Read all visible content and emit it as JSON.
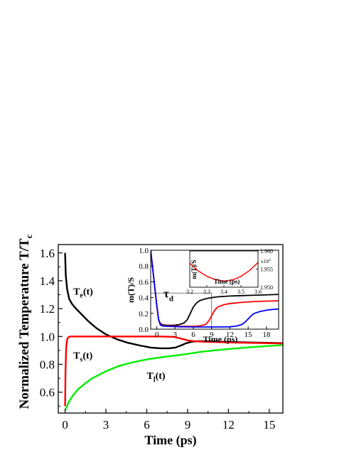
{
  "chart_data": [
    {
      "type": "line",
      "xlabel": "Time (ps)",
      "ylabel": "Normalized Temperature T/T",
      "ylabel_sub": "c",
      "xlim": [
        -0.5,
        16
      ],
      "ylim": [
        0.45,
        1.66
      ],
      "xticks": [
        0,
        3,
        6,
        9,
        12,
        15
      ],
      "yticks": [
        0.6,
        0.8,
        1.0,
        1.2,
        1.4,
        1.6
      ],
      "series": [
        {
          "name": "T",
          "name_sub": "e",
          "name_suffix": "(t)",
          "color": "#000000",
          "x": [
            0,
            0.05,
            0.15,
            0.3,
            0.5,
            0.8,
            1.2,
            1.7,
            2.3,
            3,
            3.8,
            4.6,
            5.5,
            6.3,
            7,
            7.6,
            8.1,
            8.5,
            8.9,
            9.3,
            9.8,
            10.5,
            12,
            14,
            16
          ],
          "y": [
            1.6,
            1.44,
            1.34,
            1.27,
            1.235,
            1.2,
            1.16,
            1.11,
            1.06,
            1.015,
            0.98,
            0.955,
            0.935,
            0.92,
            0.915,
            0.915,
            0.92,
            0.935,
            0.952,
            0.962,
            0.966,
            0.966,
            0.961,
            0.956,
            0.952
          ]
        },
        {
          "name": "T",
          "name_sub": "s",
          "name_suffix": "(t)",
          "color": "#ff0000",
          "x": [
            0,
            0.03,
            0.08,
            0.15,
            0.25,
            0.4,
            1,
            3,
            5,
            7,
            8,
            8.5,
            9,
            9.5,
            10,
            11,
            13,
            16
          ],
          "y": [
            0.5,
            0.75,
            0.92,
            0.98,
            0.995,
            1.0,
            1.0,
            1.0,
            1.0,
            1.0,
            0.997,
            0.985,
            0.972,
            0.966,
            0.963,
            0.96,
            0.955,
            0.95
          ]
        },
        {
          "name": "T",
          "name_sub": "l",
          "name_suffix": "(t)",
          "color": "#00ee00",
          "x": [
            0,
            0.1,
            0.3,
            0.6,
            1,
            1.5,
            2,
            3,
            4,
            5,
            6,
            7,
            8,
            9,
            10,
            11,
            12,
            13,
            14,
            15,
            16
          ],
          "y": [
            0.47,
            0.49,
            0.535,
            0.58,
            0.625,
            0.665,
            0.7,
            0.75,
            0.79,
            0.815,
            0.835,
            0.85,
            0.862,
            0.875,
            0.89,
            0.9,
            0.91,
            0.918,
            0.925,
            0.932,
            0.938
          ]
        }
      ],
      "label_positions": [
        {
          "x": 0.6,
          "y": 1.3
        },
        {
          "x": 0.6,
          "y": 0.84
        },
        {
          "x": 6.0,
          "y": 0.695
        }
      ]
    },
    {
      "type": "line",
      "ylabel": "m(T)/S",
      "xlabel": "Time (ps)",
      "xlim": [
        -1,
        20
      ],
      "ylim": [
        0,
        1.0
      ],
      "xticks": [
        0,
        3,
        6,
        9,
        12,
        15,
        18
      ],
      "yticks": [
        0.0,
        0.2,
        0.4,
        0.6,
        0.8,
        1.0
      ],
      "ytick_labels": [
        "0.0",
        "0.2",
        "0.4",
        "0.6",
        "0.8",
        "1.0"
      ],
      "annotation": {
        "text": "τ",
        "sub": "d",
        "x": 9,
        "y": 0.43
      },
      "series": [
        {
          "color": "#000000",
          "x": [
            -1,
            -0.5,
            0,
            0.3,
            0.6,
            1,
            1.5,
            2.2,
            3,
            3.8,
            4.5,
            5,
            5.5,
            6,
            6.5,
            7,
            8,
            9,
            10,
            12,
            14,
            16,
            18,
            20
          ],
          "y": [
            1.0,
            0.65,
            0.3,
            0.12,
            0.07,
            0.055,
            0.05,
            0.048,
            0.05,
            0.06,
            0.08,
            0.12,
            0.2,
            0.28,
            0.33,
            0.36,
            0.385,
            0.4,
            0.41,
            0.42,
            0.425,
            0.43,
            0.435,
            0.44
          ]
        },
        {
          "color": "#ff0000",
          "x": [
            -1,
            -0.5,
            0,
            0.3,
            0.6,
            1,
            2,
            3,
            4,
            5,
            6,
            7,
            8,
            8.5,
            9,
            9.5,
            10,
            11,
            12,
            14,
            16,
            18,
            20
          ],
          "y": [
            1.0,
            0.65,
            0.3,
            0.12,
            0.06,
            0.045,
            0.04,
            0.038,
            0.036,
            0.036,
            0.036,
            0.04,
            0.06,
            0.1,
            0.17,
            0.24,
            0.28,
            0.31,
            0.325,
            0.34,
            0.35,
            0.355,
            0.36
          ]
        },
        {
          "color": "#0000ff",
          "x": [
            -1,
            -0.5,
            0,
            0.3,
            0.6,
            1,
            2,
            4,
            6,
            8,
            10,
            12,
            13,
            14,
            14.5,
            15,
            15.5,
            16,
            17,
            18,
            19,
            20
          ],
          "y": [
            1.0,
            0.65,
            0.3,
            0.12,
            0.05,
            0.04,
            0.035,
            0.03,
            0.028,
            0.028,
            0.028,
            0.03,
            0.038,
            0.06,
            0.09,
            0.13,
            0.17,
            0.2,
            0.225,
            0.24,
            0.25,
            0.255
          ]
        }
      ]
    },
    {
      "type": "line",
      "ylabel": "m(T)/S",
      "xlabel": "Time (ps)",
      "xlim": [
        3.2,
        3.6
      ],
      "ylim": [
        1.95,
        1.96
      ],
      "xticks": [
        3.2,
        3.3,
        3.4,
        3.5,
        3.6
      ],
      "xtick_labels": [
        "3.2",
        "3.3",
        "3.4",
        "3.5",
        "3.6"
      ],
      "yticks": [
        1.95,
        1.955,
        1.96
      ],
      "ytick_labels": [
        "1.950",
        "1.955",
        "1.960"
      ],
      "multiplier": "x10",
      "multiplier_exp": "2",
      "series": [
        {
          "color": "#ff0000",
          "x": [
            3.2,
            3.25,
            3.3,
            3.35,
            3.4,
            3.45,
            3.5,
            3.55,
            3.6
          ],
          "y": [
            1.9566,
            1.9545,
            1.953,
            1.9521,
            1.9517,
            1.952,
            1.953,
            1.9546,
            1.9568
          ]
        }
      ]
    }
  ]
}
